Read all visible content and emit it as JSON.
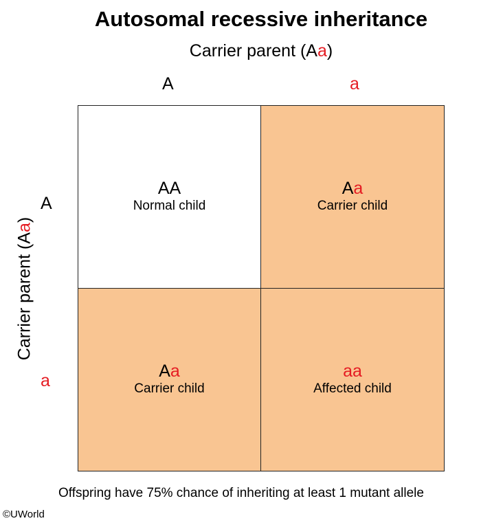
{
  "title": "Autosomal recessive inheritance",
  "top_parent": {
    "label": "Carrier parent (A",
    "allele": "a",
    "close": ")"
  },
  "left_parent": {
    "label": "Carrier parent (A",
    "allele": "a",
    "close": ")"
  },
  "columns": [
    {
      "allele": "A"
    },
    {
      "allele": "a"
    }
  ],
  "rows": [
    {
      "allele": "A"
    },
    {
      "allele": "a"
    }
  ],
  "cells": [
    {
      "g1": "AA",
      "g2": "",
      "desc": "Normal child"
    },
    {
      "g1": "A",
      "g2": "a",
      "desc": "Carrier child"
    },
    {
      "g1": "A",
      "g2": "a",
      "desc": "Carrier child"
    },
    {
      "g1": "",
      "g2": "aa",
      "desc": "Affected child"
    }
  ],
  "footnote": "Offspring have 75% chance of inheriting at least 1 mutant allele",
  "copyright": "©UWorld",
  "colors": {
    "recessive": "#e51c23",
    "shaded": "#f9c592",
    "border": "#222222"
  }
}
